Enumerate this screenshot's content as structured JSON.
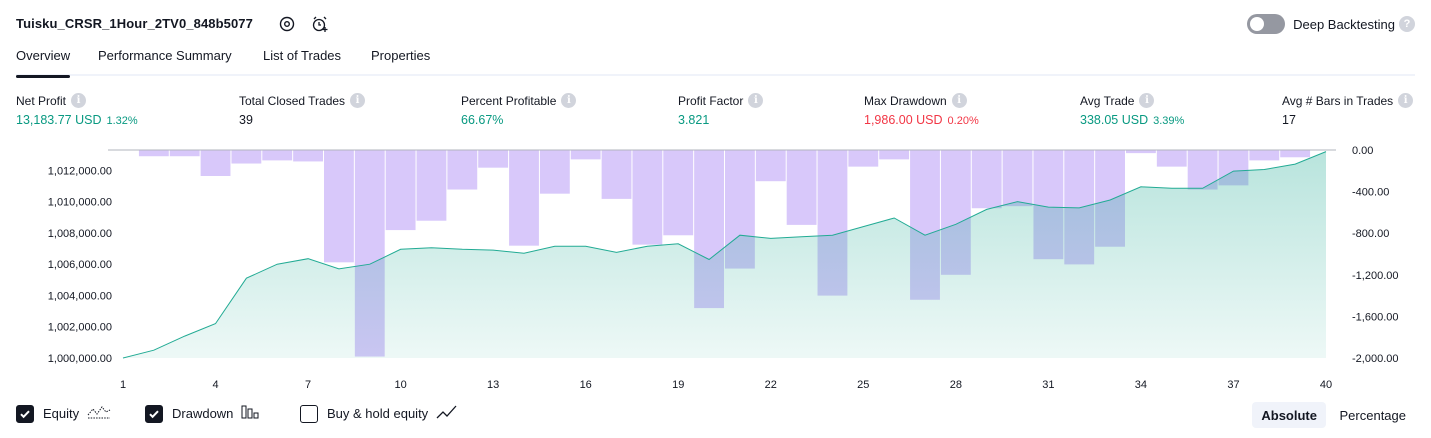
{
  "header": {
    "strategy_name": "Tuisku_CRSR_1Hour_2TV0_848b5077",
    "settings_icon": "gear-icon",
    "alert_icon": "alarm-clock-plus-icon",
    "deep_backtesting_label": "Deep Backtesting",
    "deep_backtesting_enabled": false,
    "help_icon": "question-icon"
  },
  "tabs": [
    {
      "label": "Overview",
      "active": true
    },
    {
      "label": "Performance Summary",
      "active": false
    },
    {
      "label": "List of Trades",
      "active": false
    },
    {
      "label": "Properties",
      "active": false
    }
  ],
  "metrics": [
    {
      "label": "Net Profit",
      "value": "13,183.77 USD",
      "pct": "1.32%",
      "color": "#089981"
    },
    {
      "label": "Total Closed Trades",
      "value": "39",
      "pct": "",
      "color": "#131722"
    },
    {
      "label": "Percent Profitable",
      "value": "66.67%",
      "pct": "",
      "color": "#089981"
    },
    {
      "label": "Profit Factor",
      "value": "3.821",
      "pct": "",
      "color": "#089981"
    },
    {
      "label": "Max Drawdown",
      "value": "1,986.00 USD",
      "pct": "0.20%",
      "color": "#f23645"
    },
    {
      "label": "Avg Trade",
      "value": "338.05 USD",
      "pct": "3.39%",
      "color": "#089981"
    },
    {
      "label": "Avg # Bars in Trades",
      "value": "17",
      "pct": "",
      "color": "#131722"
    }
  ],
  "chart_data": {
    "type": "line",
    "x": [
      1,
      2,
      3,
      4,
      5,
      6,
      7,
      8,
      9,
      10,
      11,
      12,
      13,
      14,
      15,
      16,
      17,
      18,
      19,
      20,
      21,
      22,
      23,
      24,
      25,
      26,
      27,
      28,
      29,
      30,
      31,
      32,
      33,
      34,
      35,
      36,
      37,
      38,
      39,
      40
    ],
    "x_ticks": [
      "1",
      "4",
      "7",
      "10",
      "13",
      "16",
      "19",
      "22",
      "25",
      "28",
      "31",
      "34",
      "37",
      "40"
    ],
    "series": [
      {
        "name": "Equity",
        "axis": "left",
        "style": "area",
        "color": "#22ab94",
        "values": [
          1000000,
          1000500,
          1001400,
          1002200,
          1005100,
          1006000,
          1006350,
          1005700,
          1006000,
          1006950,
          1007050,
          1006950,
          1006900,
          1006700,
          1007150,
          1007150,
          1006750,
          1007150,
          1007300,
          1006300,
          1007850,
          1007650,
          1007750,
          1007850,
          1008400,
          1008950,
          1007850,
          1008550,
          1009500,
          1010000,
          1009650,
          1009600,
          1010100,
          1010950,
          1010850,
          1010850,
          1011950,
          1012050,
          1012400,
          1013200
        ]
      },
      {
        "name": "Drawdown",
        "axis": "right",
        "style": "bar",
        "color": "#b89af5",
        "values": [
          0,
          -60,
          -60,
          -250,
          -130,
          -100,
          -110,
          -1080,
          -1986,
          -770,
          -680,
          -380,
          -170,
          -920,
          -420,
          -90,
          -470,
          -910,
          -820,
          -1520,
          -1140,
          -300,
          -720,
          -1400,
          -160,
          -90,
          -1440,
          -1200,
          -560,
          -540,
          -1050,
          -1100,
          -930,
          -30,
          -160,
          -380,
          -340,
          -100,
          -70,
          0
        ]
      }
    ],
    "y_left": {
      "ticks": [
        "1,000,000.00",
        "1,002,000.00",
        "1,004,000.00",
        "1,006,000.00",
        "1,008,000.00",
        "1,010,000.00",
        "1,012,000.00"
      ],
      "min": 1000000,
      "max": 1013300
    },
    "y_right": {
      "ticks": [
        "0.00",
        "-400.00",
        "-800.00",
        "-1,200.00",
        "-1,600.00",
        "-2,000.00"
      ],
      "min": -2000,
      "max": 0
    },
    "grid": false,
    "legend": "bottom-left"
  },
  "footer": {
    "toggles": [
      {
        "label": "Equity",
        "checked": true,
        "icon": "equity-line-icon"
      },
      {
        "label": "Drawdown",
        "checked": true,
        "icon": "drawdown-bars-icon"
      },
      {
        "label": "Buy & hold equity",
        "checked": false,
        "icon": "trend-line-icon"
      }
    ],
    "modes": [
      {
        "label": "Absolute",
        "selected": true
      },
      {
        "label": "Percentage",
        "selected": false
      }
    ]
  }
}
